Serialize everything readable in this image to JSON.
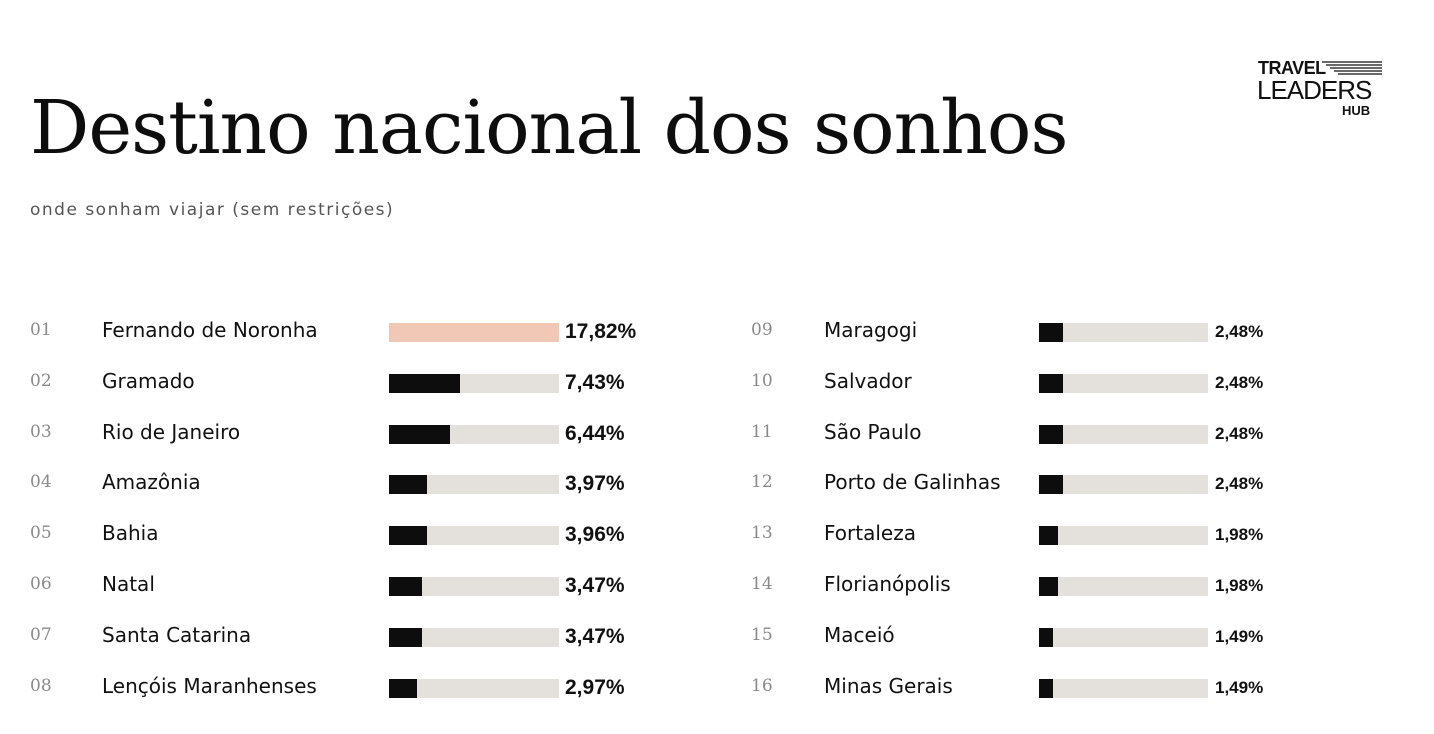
{
  "title": "Destino nacional dos sonhos",
  "subtitle": "onde sonham viajar (sem restrições)",
  "logo": {
    "line1": "TRAVEL",
    "line2": "LEADERS",
    "line3": "HUB"
  },
  "colors": {
    "highlight": "#f0c8b5",
    "bar": "#0d0d0d",
    "track": "#e4e1dc"
  },
  "chart_data": {
    "type": "bar",
    "orientation": "horizontal",
    "title": "Destino nacional dos sonhos",
    "subtitle": "onde sonham viajar (sem restrições)",
    "xlim": [
      0,
      17.82
    ],
    "grid": false,
    "rows": [
      {
        "rank": "01",
        "label": "Fernando de Noronha",
        "value": 17.82,
        "display": "17,82%",
        "highlight": true
      },
      {
        "rank": "02",
        "label": "Gramado",
        "value": 7.43,
        "display": "7,43%"
      },
      {
        "rank": "03",
        "label": "Rio de Janeiro",
        "value": 6.44,
        "display": "6,44%"
      },
      {
        "rank": "04",
        "label": "Amazônia",
        "value": 3.97,
        "display": "3,97%"
      },
      {
        "rank": "05",
        "label": "Bahia",
        "value": 3.96,
        "display": "3,96%"
      },
      {
        "rank": "06",
        "label": "Natal",
        "value": 3.47,
        "display": "3,47%"
      },
      {
        "rank": "07",
        "label": "Santa Catarina",
        "value": 3.47,
        "display": "3,47%"
      },
      {
        "rank": "08",
        "label": "Lençóis Maranhenses",
        "value": 2.97,
        "display": "2,97%"
      },
      {
        "rank": "09",
        "label": "Maragogi",
        "value": 2.48,
        "display": "2,48%"
      },
      {
        "rank": "10",
        "label": "Salvador",
        "value": 2.48,
        "display": "2,48%"
      },
      {
        "rank": "11",
        "label": "São Paulo",
        "value": 2.48,
        "display": "2,48%"
      },
      {
        "rank": "12",
        "label": "Porto de Galinhas",
        "value": 2.48,
        "display": "2,48%"
      },
      {
        "rank": "13",
        "label": "Fortaleza",
        "value": 1.98,
        "display": "1,98%"
      },
      {
        "rank": "14",
        "label": "Florianópolis",
        "value": 1.98,
        "display": "1,98%"
      },
      {
        "rank": "15",
        "label": "Maceió",
        "value": 1.49,
        "display": "1,49%"
      },
      {
        "rank": "16",
        "label": "Minas Gerais",
        "value": 1.49,
        "display": "1,49%"
      }
    ]
  }
}
